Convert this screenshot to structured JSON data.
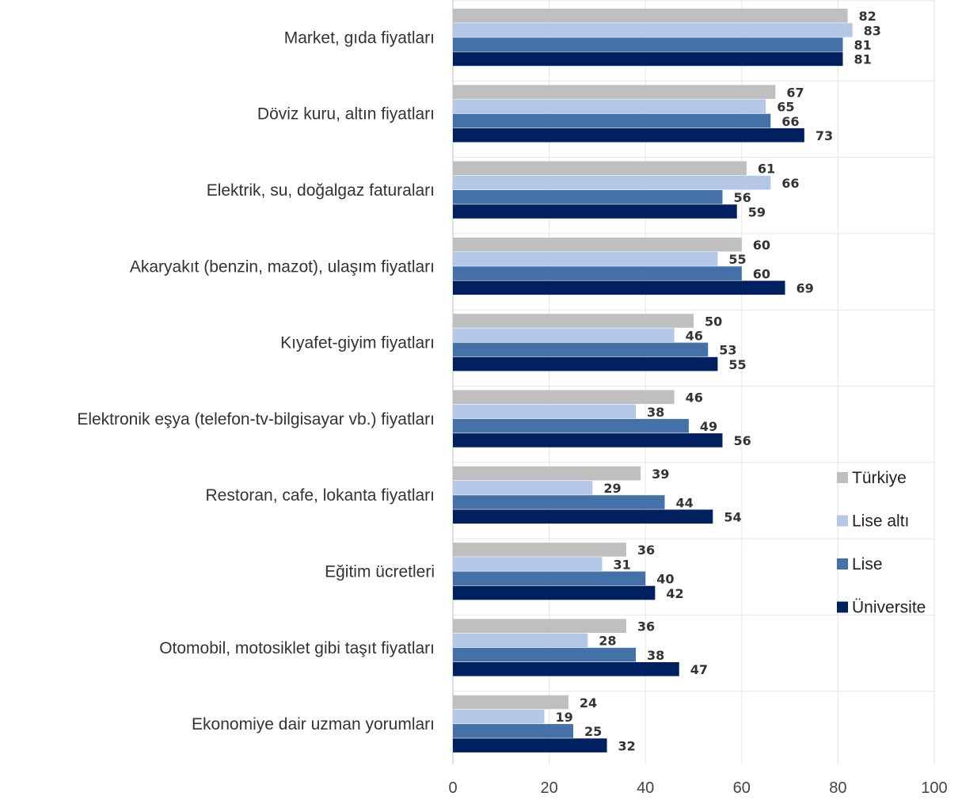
{
  "chart_data": {
    "type": "bar",
    "orientation": "horizontal",
    "categories": [
      "Market, gıda fiyatları",
      "Döviz kuru, altın fiyatları",
      "Elektrik, su, doğalgaz faturaları",
      "Akaryakıt (benzin, mazot), ulaşım fiyatları",
      "Kıyafet-giyim fiyatları",
      "Elektronik eşya (telefon-tv-bilgisayar vb.) fiyatları",
      "Restoran, cafe, lokanta fiyatları",
      "Eğitim ücretleri",
      "Otomobil, motosiklet gibi taşıt fiyatları",
      "Ekonomiye dair uzman yorumları"
    ],
    "series": [
      {
        "name": "Türkiye",
        "color": "#bfbfbf",
        "values": [
          82,
          67,
          61,
          60,
          50,
          46,
          39,
          36,
          36,
          24
        ]
      },
      {
        "name": "Lise altı",
        "color": "#b4c7e7",
        "values": [
          83,
          65,
          66,
          55,
          46,
          38,
          29,
          31,
          28,
          19
        ]
      },
      {
        "name": "Lise",
        "color": "#4472a8",
        "values": [
          81,
          66,
          56,
          60,
          53,
          49,
          44,
          40,
          38,
          25
        ]
      },
      {
        "name": "Üniversite",
        "color": "#002060",
        "values": [
          81,
          73,
          59,
          69,
          55,
          56,
          54,
          42,
          47,
          32
        ]
      }
    ],
    "xlim": [
      0,
      100
    ],
    "xticks": [
      "0",
      "20",
      "40",
      "60",
      "80",
      "100"
    ],
    "grid": true,
    "legend_position": "right",
    "title": "",
    "xlabel": "",
    "ylabel": ""
  }
}
